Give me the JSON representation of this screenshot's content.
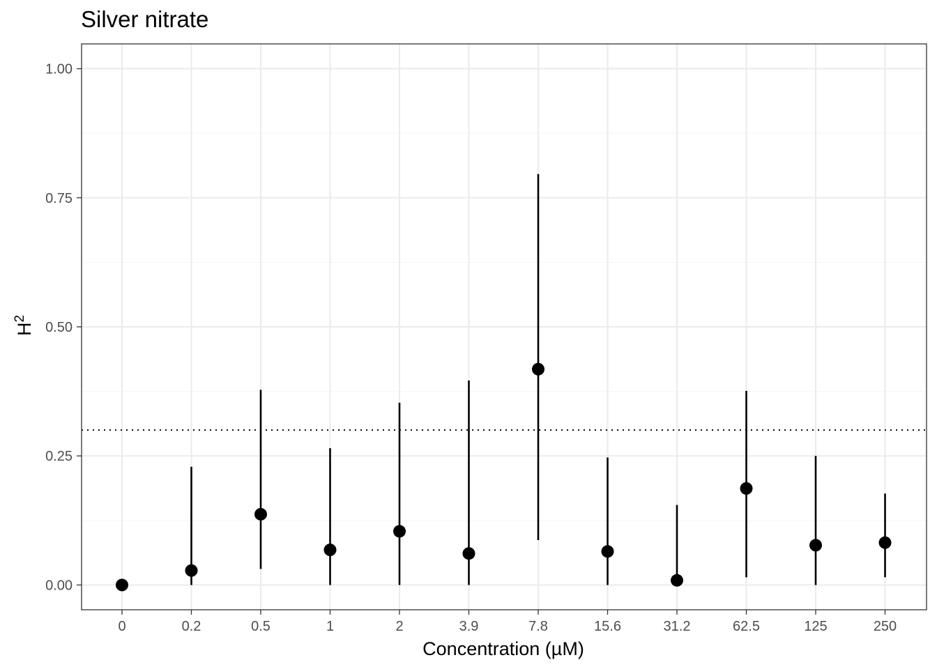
{
  "chart_data": {
    "type": "scatter",
    "title": "Silver nitrate",
    "xlabel": "Concentration (µM)",
    "ylabel": {
      "base": "H",
      "superscript": "2"
    },
    "categories": [
      "0",
      "0.2",
      "0.5",
      "1",
      "2",
      "3.9",
      "7.8",
      "15.6",
      "31.2",
      "62.5",
      "125",
      "250"
    ],
    "values": [
      0.0,
      0.028,
      0.137,
      0.068,
      0.104,
      0.061,
      0.418,
      0.065,
      0.009,
      0.187,
      0.077,
      0.082
    ],
    "error_low": [
      0.0,
      0.0,
      0.031,
      0.0,
      0.0,
      0.0,
      0.087,
      0.0,
      0.0,
      0.015,
      0.0,
      0.015
    ],
    "error_high": [
      0.0,
      0.229,
      0.378,
      0.265,
      0.353,
      0.396,
      0.796,
      0.247,
      0.155,
      0.376,
      0.25,
      0.177
    ],
    "reference_line": 0.3,
    "ylim": [
      -0.048,
      1.048
    ],
    "yticks": [
      "0.00",
      "0.25",
      "0.50",
      "0.75",
      "1.00"
    ],
    "ytick_values": [
      0,
      0.25,
      0.5,
      0.75,
      1.0
    ],
    "grid": true,
    "legend": "none",
    "colors": {
      "points": "#000000",
      "grid_major": "#ebebeb",
      "grid_minor": "#f5f5f5",
      "panel_border": "#333333"
    }
  }
}
